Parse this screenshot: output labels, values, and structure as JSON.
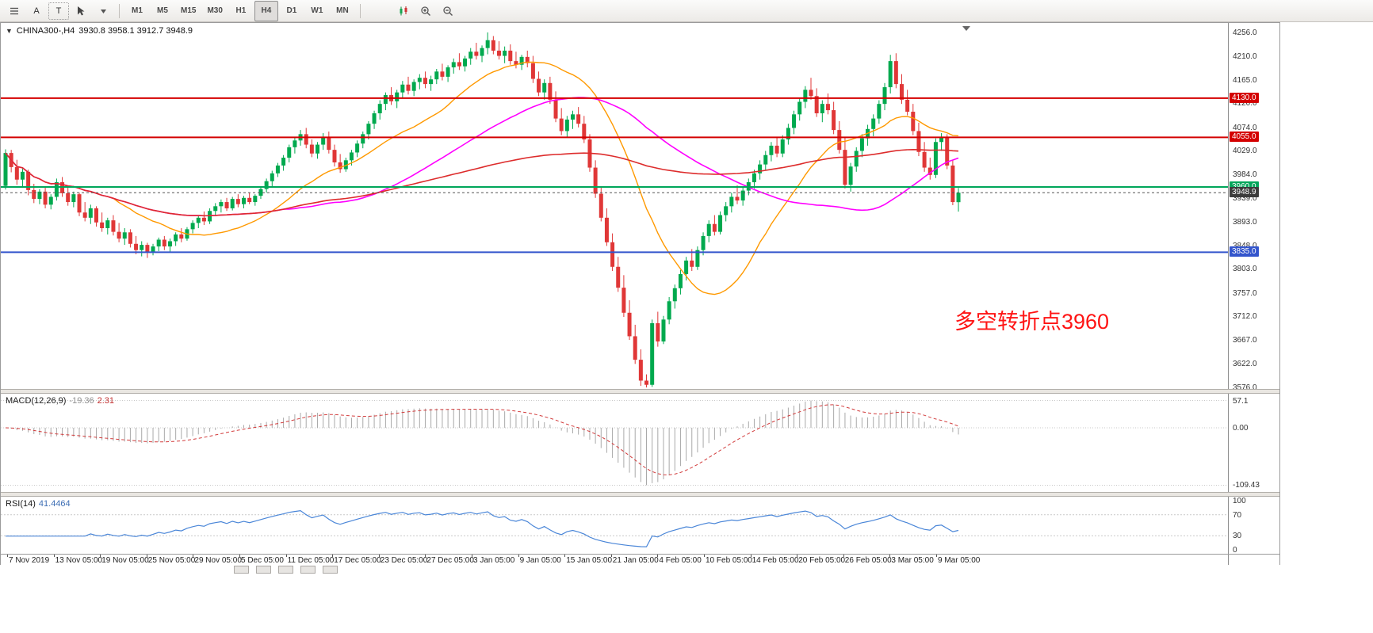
{
  "toolbar": {
    "left_tools": [
      {
        "name": "charts-list-icon",
        "type": "icon"
      },
      {
        "name": "text-annotation-tool",
        "type": "text",
        "label": "A"
      },
      {
        "name": "text-label-tool",
        "type": "text",
        "label": "T",
        "boxed": true
      },
      {
        "name": "cursor-tool-icon",
        "type": "icon"
      },
      {
        "name": "tool-dropdown-arrow-icon",
        "type": "icon"
      }
    ],
    "timeframes": [
      "M1",
      "M5",
      "M15",
      "M30",
      "H1",
      "H4",
      "D1",
      "W1",
      "MN"
    ],
    "active_timeframe": "H4",
    "right_tools": [
      {
        "name": "candlestick-chart-icon",
        "type": "icon"
      },
      {
        "name": "zoom-in-icon",
        "type": "icon"
      },
      {
        "name": "zoom-out-icon",
        "type": "icon"
      }
    ]
  },
  "chart_header": {
    "expander": "▼",
    "title": "CHINA300-,H4",
    "ohlc": "3930.8 3958.1 3912.7 3948.9"
  },
  "annotation": {
    "text": "多空转折点3960",
    "color": "#ff1414"
  },
  "bottom_strip": {
    "tab_count": 5
  },
  "chart_data": {
    "type": "candlestick",
    "symbol": "CHINA300-",
    "timeframe": "H4",
    "last_bar": {
      "open": 3930.8,
      "high": 3958.1,
      "low": 3912.7,
      "close": 3948.9
    },
    "price_range": [
      3573,
      4274
    ],
    "y_ticks": [
      "4256.0",
      "4210.0",
      "4165.0",
      "4120.0",
      "4074.0",
      "4029.0",
      "3984.0",
      "3939.0",
      "3893.0",
      "3848.0",
      "3803.0",
      "3757.0",
      "3712.0",
      "3667.0",
      "3622.0",
      "3576.0"
    ],
    "x_labels": [
      "7 Nov 2019",
      "13 Nov 05:00",
      "19 Nov 05:00",
      "25 Nov 05:00",
      "29 Nov 05:00",
      "5 Dec 05:00",
      "11 Dec 05:00",
      "17 Dec 05:00",
      "23 Dec 05:00",
      "27 Dec 05:00",
      "3 Jan 05:00",
      "9 Jan 05:00",
      "15 Jan 05:00",
      "21 Jan 05:00",
      "4 Feb 05:00",
      "10 Feb 05:00",
      "14 Feb 05:00",
      "20 Feb 05:00",
      "26 Feb 05:00",
      "3 Mar 05:00",
      "9 Mar 05:00"
    ],
    "candle_up_color": "#00a94e",
    "candle_down_color": "#e03737",
    "moving_averages": [
      {
        "name": "ma-fast",
        "period": 20,
        "color": "#ff9900",
        "width": 1.4
      },
      {
        "name": "ma-medium",
        "period": 50,
        "color": "#ff00ff",
        "width": 1.6
      },
      {
        "name": "ma-slow",
        "period": 110,
        "color": "#dd2c2c",
        "width": 1.6
      }
    ],
    "horizontal_lines": [
      {
        "price": 4130.0,
        "color": "#d40000",
        "label": "4130.0",
        "width": 2
      },
      {
        "price": 4055.0,
        "color": "#d40000",
        "label": "4055.0",
        "width": 2
      },
      {
        "price": 3960.0,
        "color": "#00a65a",
        "label": "3960.0",
        "width": 2
      },
      {
        "price": 3835.0,
        "color": "#3355cc",
        "label": "3835.0",
        "width": 2
      }
    ],
    "current_price": {
      "price": 3948.9,
      "label": "3948.9",
      "line_color": "#555555",
      "badge_color": "#3c3c3c"
    },
    "indicators": {
      "macd": {
        "label": "MACD(12,26,9)",
        "main_value": "-19.36",
        "signal_value": "2.31",
        "fast": 12,
        "slow": 26,
        "signal": 9,
        "scale_labels": [
          "57.1",
          "0.00",
          "-109.43"
        ],
        "histogram_color": "#a9a9a9",
        "signal_color": "#d23b3b"
      },
      "rsi": {
        "label": "RSI(14)",
        "value": "41.4464",
        "period": 14,
        "levels": [
          70,
          30
        ],
        "scale_labels": [
          100,
          70,
          30,
          0
        ],
        "line_color": "#4a86d8"
      }
    },
    "candles": [
      [
        3962,
        4032,
        3955,
        4025
      ],
      [
        4025,
        4031,
        3988,
        3998
      ],
      [
        3998,
        4012,
        3964,
        3974
      ],
      [
        3974,
        3996,
        3960,
        3989
      ],
      [
        3989,
        3993,
        3944,
        3954
      ],
      [
        3954,
        3966,
        3929,
        3937
      ],
      [
        3937,
        3956,
        3927,
        3951
      ],
      [
        3951,
        3959,
        3919,
        3926
      ],
      [
        3926,
        3946,
        3917,
        3941
      ],
      [
        3941,
        3976,
        3934,
        3969
      ],
      [
        3969,
        3979,
        3941,
        3948
      ],
      [
        3948,
        3963,
        3924,
        3931
      ],
      [
        3931,
        3951,
        3921,
        3946
      ],
      [
        3946,
        3949,
        3904,
        3911
      ],
      [
        3911,
        3931,
        3894,
        3901
      ],
      [
        3901,
        3926,
        3889,
        3919
      ],
      [
        3919,
        3923,
        3884,
        3892
      ],
      [
        3892,
        3911,
        3874,
        3881
      ],
      [
        3881,
        3901,
        3869,
        3896
      ],
      [
        3896,
        3906,
        3867,
        3874
      ],
      [
        3874,
        3891,
        3854,
        3861
      ],
      [
        3861,
        3881,
        3849,
        3873
      ],
      [
        3873,
        3879,
        3844,
        3851
      ],
      [
        3851,
        3866,
        3831,
        3839
      ],
      [
        3839,
        3856,
        3827,
        3849
      ],
      [
        3849,
        3853,
        3824,
        3834
      ],
      [
        3834,
        3851,
        3829,
        3846
      ],
      [
        3846,
        3863,
        3837,
        3859
      ],
      [
        3859,
        3866,
        3839,
        3846
      ],
      [
        3846,
        3861,
        3834,
        3856
      ],
      [
        3856,
        3873,
        3847,
        3869
      ],
      [
        3869,
        3881,
        3854,
        3861
      ],
      [
        3861,
        3883,
        3857,
        3879
      ],
      [
        3879,
        3896,
        3871,
        3891
      ],
      [
        3891,
        3906,
        3881,
        3901
      ],
      [
        3901,
        3913,
        3887,
        3894
      ],
      [
        3894,
        3919,
        3889,
        3914
      ],
      [
        3914,
        3929,
        3904,
        3923
      ],
      [
        3923,
        3936,
        3911,
        3931
      ],
      [
        3931,
        3939,
        3914,
        3919
      ],
      [
        3919,
        3941,
        3915,
        3937
      ],
      [
        3937,
        3946,
        3921,
        3927
      ],
      [
        3927,
        3943,
        3919,
        3939
      ],
      [
        3939,
        3949,
        3927,
        3931
      ],
      [
        3931,
        3946,
        3924,
        3943
      ],
      [
        3943,
        3961,
        3937,
        3956
      ],
      [
        3956,
        3976,
        3949,
        3971
      ],
      [
        3971,
        3991,
        3961,
        3986
      ],
      [
        3986,
        4006,
        3979,
        4001
      ],
      [
        4001,
        4021,
        3991,
        4016
      ],
      [
        4016,
        4041,
        4007,
        4036
      ],
      [
        4036,
        4056,
        4024,
        4049
      ],
      [
        4049,
        4069,
        4039,
        4061
      ],
      [
        4061,
        4073,
        4034,
        4041
      ],
      [
        4041,
        4051,
        4017,
        4024
      ],
      [
        4024,
        4046,
        4014,
        4041
      ],
      [
        4041,
        4063,
        4031,
        4056
      ],
      [
        4056,
        4066,
        4024,
        4031
      ],
      [
        4031,
        4041,
        3999,
        4007
      ],
      [
        4007,
        4023,
        3987,
        3994
      ],
      [
        3994,
        4016,
        3989,
        4011
      ],
      [
        4011,
        4031,
        4001,
        4026
      ],
      [
        4026,
        4049,
        4017,
        4043
      ],
      [
        4043,
        4066,
        4034,
        4061
      ],
      [
        4061,
        4086,
        4051,
        4081
      ],
      [
        4081,
        4106,
        4071,
        4101
      ],
      [
        4101,
        4126,
        4089,
        4119
      ],
      [
        4119,
        4141,
        4107,
        4136
      ],
      [
        4136,
        4151,
        4117,
        4124
      ],
      [
        4124,
        4146,
        4111,
        4141
      ],
      [
        4141,
        4163,
        4129,
        4156
      ],
      [
        4156,
        4171,
        4137,
        4144
      ],
      [
        4144,
        4166,
        4134,
        4161
      ],
      [
        4161,
        4176,
        4147,
        4169
      ],
      [
        4169,
        4181,
        4149,
        4157
      ],
      [
        4157,
        4173,
        4144,
        4166
      ],
      [
        4166,
        4186,
        4157,
        4181
      ],
      [
        4181,
        4196,
        4164,
        4171
      ],
      [
        4171,
        4193,
        4161,
        4189
      ],
      [
        4189,
        4206,
        4177,
        4199
      ],
      [
        4199,
        4216,
        4184,
        4191
      ],
      [
        4191,
        4211,
        4181,
        4206
      ],
      [
        4206,
        4226,
        4194,
        4219
      ],
      [
        4219,
        4236,
        4204,
        4211
      ],
      [
        4211,
        4231,
        4199,
        4226
      ],
      [
        4226,
        4256,
        4214,
        4241
      ],
      [
        4241,
        4249,
        4214,
        4221
      ],
      [
        4221,
        4239,
        4204,
        4211
      ],
      [
        4211,
        4229,
        4197,
        4221
      ],
      [
        4221,
        4233,
        4194,
        4201
      ],
      [
        4201,
        4219,
        4187,
        4194
      ],
      [
        4194,
        4213,
        4184,
        4209
      ],
      [
        4209,
        4221,
        4189,
        4197
      ],
      [
        4197,
        4211,
        4159,
        4167
      ],
      [
        4167,
        4181,
        4134,
        4141
      ],
      [
        4141,
        4166,
        4127,
        4159
      ],
      [
        4159,
        4171,
        4119,
        4127
      ],
      [
        4127,
        4143,
        4084,
        4091
      ],
      [
        4091,
        4111,
        4059,
        4067
      ],
      [
        4067,
        4096,
        4054,
        4089
      ],
      [
        4089,
        4106,
        4071,
        4099
      ],
      [
        4099,
        4113,
        4074,
        4081
      ],
      [
        4081,
        4096,
        4044,
        4051
      ],
      [
        4051,
        4061,
        3989,
        3997
      ],
      [
        3997,
        4011,
        3939,
        3947
      ],
      [
        3947,
        3961,
        3894,
        3901
      ],
      [
        3901,
        3919,
        3847,
        3854
      ],
      [
        3854,
        3871,
        3799,
        3807
      ],
      [
        3807,
        3826,
        3759,
        3767
      ],
      [
        3767,
        3791,
        3711,
        3719
      ],
      [
        3719,
        3743,
        3667,
        3674
      ],
      [
        3674,
        3696,
        3621,
        3629
      ],
      [
        3629,
        3649,
        3579,
        3589
      ],
      [
        3589,
        3601,
        3576,
        3581
      ],
      [
        3581,
        3706,
        3577,
        3699
      ],
      [
        3699,
        3721,
        3654,
        3664
      ],
      [
        3664,
        3713,
        3659,
        3706
      ],
      [
        3706,
        3749,
        3697,
        3741
      ],
      [
        3741,
        3773,
        3727,
        3766
      ],
      [
        3766,
        3801,
        3754,
        3793
      ],
      [
        3793,
        3826,
        3781,
        3819
      ],
      [
        3819,
        3841,
        3799,
        3807
      ],
      [
        3807,
        3846,
        3801,
        3839
      ],
      [
        3839,
        3873,
        3829,
        3866
      ],
      [
        3866,
        3896,
        3854,
        3889
      ],
      [
        3889,
        3906,
        3867,
        3874
      ],
      [
        3874,
        3913,
        3869,
        3906
      ],
      [
        3906,
        3931,
        3894,
        3923
      ],
      [
        3923,
        3949,
        3911,
        3941
      ],
      [
        3941,
        3963,
        3927,
        3934
      ],
      [
        3934,
        3959,
        3924,
        3953
      ],
      [
        3953,
        3976,
        3944,
        3969
      ],
      [
        3969,
        3993,
        3957,
        3986
      ],
      [
        3986,
        4011,
        3974,
        4003
      ],
      [
        4003,
        4029,
        3991,
        4021
      ],
      [
        4021,
        4046,
        4009,
        4039
      ],
      [
        4039,
        4056,
        4017,
        4024
      ],
      [
        4024,
        4059,
        4017,
        4051
      ],
      [
        4051,
        4081,
        4041,
        4073
      ],
      [
        4073,
        4106,
        4061,
        4099
      ],
      [
        4099,
        4131,
        4087,
        4123
      ],
      [
        4123,
        4153,
        4111,
        4146
      ],
      [
        4146,
        4169,
        4127,
        4134
      ],
      [
        4134,
        4149,
        4094,
        4101
      ],
      [
        4101,
        4126,
        4084,
        4119
      ],
      [
        4119,
        4139,
        4099,
        4107
      ],
      [
        4107,
        4123,
        4061,
        4069
      ],
      [
        4069,
        4086,
        4024,
        4031
      ],
      [
        4031,
        4056,
        3957,
        3964
      ],
      [
        3964,
        4006,
        3951,
        3999
      ],
      [
        3999,
        4036,
        3989,
        4029
      ],
      [
        4029,
        4061,
        4017,
        4053
      ],
      [
        4053,
        4079,
        4039,
        4071
      ],
      [
        4071,
        4099,
        4057,
        4091
      ],
      [
        4091,
        4126,
        4081,
        4119
      ],
      [
        4119,
        4159,
        4107,
        4151
      ],
      [
        4151,
        4213,
        4139,
        4201
      ],
      [
        4201,
        4216,
        4149,
        4157
      ],
      [
        4157,
        4176,
        4119,
        4127
      ],
      [
        4127,
        4146,
        4097,
        4104
      ],
      [
        4104,
        4119,
        4059,
        4067
      ],
      [
        4067,
        4083,
        4019,
        4027
      ],
      [
        4027,
        4046,
        3989,
        3997
      ],
      [
        3997,
        4016,
        3974,
        3983
      ],
      [
        3983,
        4053,
        3977,
        4046
      ],
      [
        4046,
        4063,
        4029,
        4056
      ],
      [
        4056,
        4061,
        3994,
        4001
      ],
      [
        4001,
        4011,
        3925,
        3931
      ],
      [
        3930.8,
        3958.1,
        3912.7,
        3948.9
      ]
    ]
  }
}
